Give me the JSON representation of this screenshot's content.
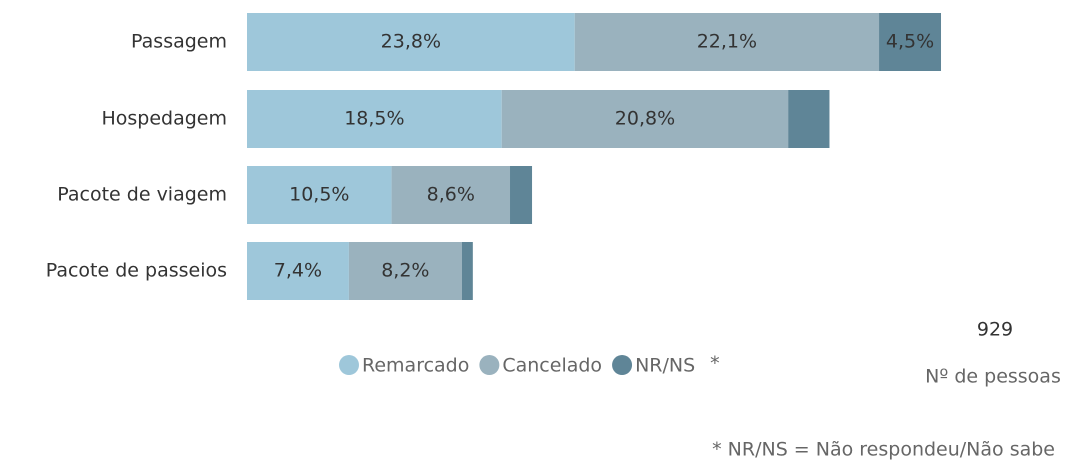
{
  "chart_data": {
    "type": "stacked-bar-horizontal",
    "categories": [
      "Passagem",
      "Hospedagem",
      "Pacote de viagem",
      "Pacote de passeios"
    ],
    "series": [
      {
        "name": "Remarcado",
        "color": "#9ec7da",
        "values": [
          23.8,
          18.5,
          10.5,
          7.4
        ],
        "value_labels": [
          "23,8%",
          "18,5%",
          "10,5%",
          "7,4%"
        ]
      },
      {
        "name": "Cancelado",
        "color": "#9ab2be",
        "values": [
          22.1,
          20.8,
          8.6,
          8.2
        ],
        "value_labels": [
          "22,1%",
          "20,8%",
          "8,6%",
          "8,2%"
        ]
      },
      {
        "name": "NR/NS",
        "color": "#5f8597",
        "values": [
          4.5,
          3.0,
          1.6,
          0.8
        ],
        "value_labels": [
          "4,5%",
          null,
          null,
          null
        ]
      }
    ],
    "legend_note": "*",
    "sample_size": "929",
    "sample_label": "Nº de pessoas",
    "footnote": "* NR/NS = Não respondeu/Não sabe"
  }
}
